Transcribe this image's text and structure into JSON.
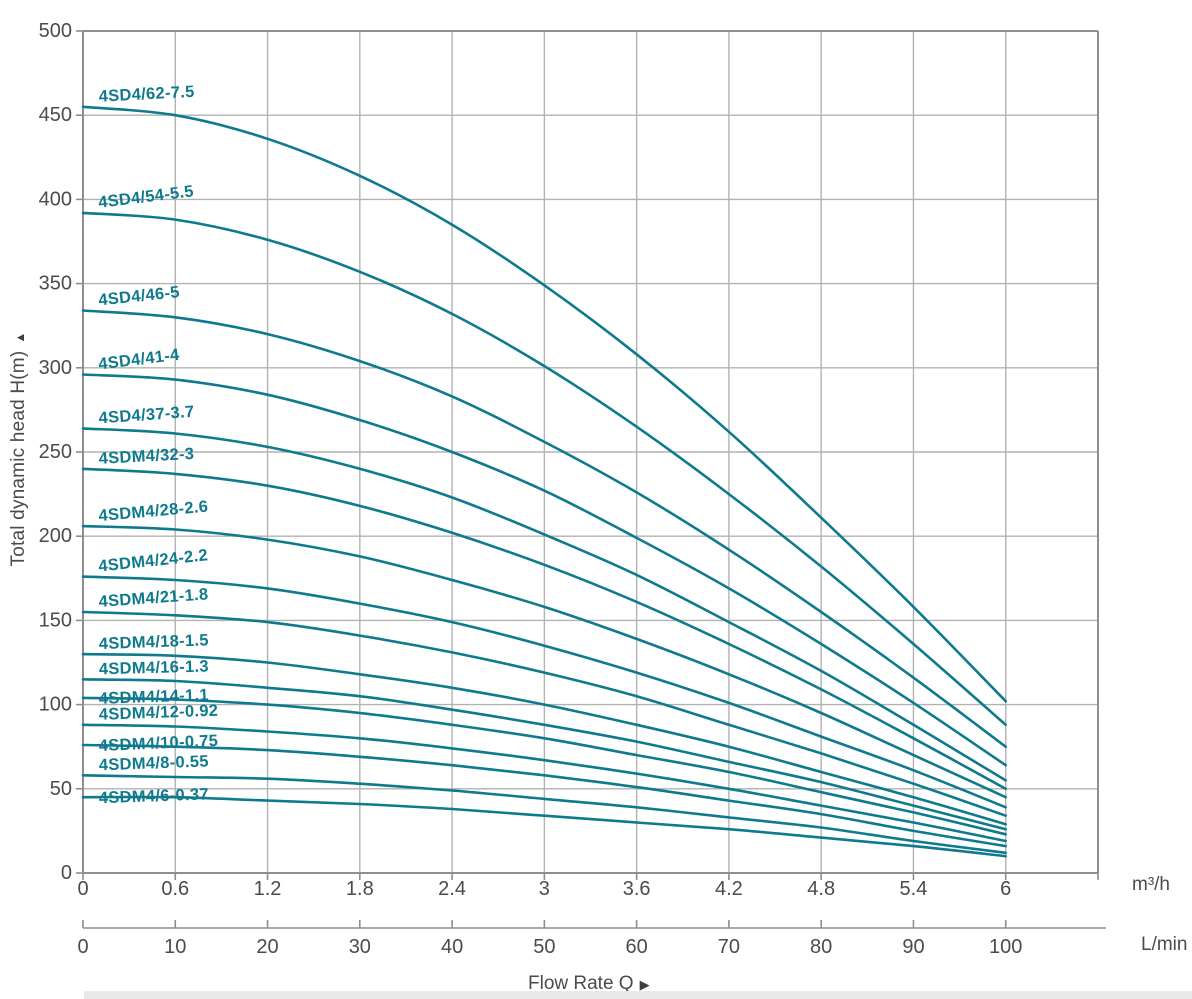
{
  "icons": {
    "up_arrow": "▲",
    "right_arrow": "▶"
  },
  "colors": {
    "curve": "#0e7a8d",
    "curve_label": "#0e7a8d",
    "grid": "#b2b2b2",
    "border": "#8e8e8e",
    "tick": "#8e8e8e",
    "text": "#4b4b4b",
    "strip": "#e9e9e9"
  },
  "chart_data": {
    "type": "line",
    "title": "",
    "xlabel": "Flow Rate Q",
    "ylabel": "Total dynamic head H(m)",
    "x_unit_primary": "m³/h",
    "x_unit_secondary": "L/min",
    "x_m3h": [
      0,
      0.6,
      1.2,
      1.8,
      2.4,
      3,
      3.6,
      4.2,
      4.8,
      5.4,
      6
    ],
    "x_ticks_m3h": [
      "0",
      "0.6",
      "1.2",
      "1.8",
      "2.4",
      "3",
      "3.6",
      "4.2",
      "4.8",
      "5.4",
      "6"
    ],
    "x_ticks_lmin": [
      "0",
      "10",
      "20",
      "30",
      "40",
      "50",
      "60",
      "70",
      "80",
      "90",
      "100"
    ],
    "x_range_m3h": [
      0,
      6.6
    ],
    "y_ticks": [
      0,
      50,
      100,
      150,
      200,
      250,
      300,
      350,
      400,
      450,
      500
    ],
    "y_range": [
      0,
      500
    ],
    "grid": true,
    "legend_position": "labels-on-curves",
    "series": [
      {
        "name": "4SD4/62-7.5",
        "heads_m": [
          455,
          450,
          436,
          414,
          385,
          349,
          308,
          262,
          211,
          158,
          102
        ],
        "label_rot": -3,
        "label_on_line": false
      },
      {
        "name": "4SD4/54-5.5",
        "heads_m": [
          392,
          388,
          376,
          357,
          332,
          301,
          265,
          225,
          182,
          136,
          88
        ],
        "label_rot": -7,
        "label_on_line": false
      },
      {
        "name": "4SD4/46-5",
        "heads_m": [
          334,
          330,
          320,
          304,
          283,
          256,
          226,
          192,
          155,
          116,
          75
        ],
        "label_rot": -6,
        "label_on_line": false
      },
      {
        "name": "4SD4/41-4",
        "heads_m": [
          296,
          293,
          284,
          269,
          250,
          227,
          199,
          169,
          136,
          101,
          64
        ],
        "label_rot": -7,
        "label_on_line": false
      },
      {
        "name": "4SD4/37-3.7",
        "heads_m": [
          264,
          261,
          253,
          240,
          223,
          201,
          177,
          149,
          120,
          88,
          55
        ],
        "label_rot": -4,
        "label_on_line": false
      },
      {
        "name": "4SDM4/32-3",
        "heads_m": [
          240,
          237,
          230,
          218,
          202,
          183,
          161,
          136,
          109,
          80,
          50
        ],
        "label_rot": -3,
        "label_on_line": false
      },
      {
        "name": "4SDM4/28-2.6",
        "heads_m": [
          206,
          204,
          198,
          188,
          174,
          158,
          139,
          118,
          95,
          70,
          45
        ],
        "label_rot": -5,
        "label_on_line": false
      },
      {
        "name": "4SDM4/24-2.2",
        "heads_m": [
          176,
          174,
          169,
          160,
          149,
          135,
          119,
          101,
          81,
          61,
          39
        ],
        "label_rot": -6,
        "label_on_line": false
      },
      {
        "name": "4SDM4/21-1.8",
        "heads_m": [
          155,
          153,
          149,
          141,
          131,
          119,
          105,
          88,
          71,
          53,
          34
        ],
        "label_rot": -4,
        "label_on_line": false
      },
      {
        "name": "4SDM4/18-1.5",
        "heads_m": [
          130,
          129,
          125,
          118,
          110,
          100,
          88,
          75,
          60,
          45,
          29
        ],
        "label_rot": -2,
        "label_on_line": false
      },
      {
        "name": "4SDM4/16-1.3",
        "heads_m": [
          115,
          114,
          110,
          105,
          97,
          88,
          78,
          66,
          54,
          40,
          26
        ],
        "label_rot": -1.5,
        "label_on_line": false
      },
      {
        "name": "4SDM4/14-1.1",
        "heads_m": [
          104,
          103,
          100,
          95,
          88,
          80,
          70,
          60,
          48,
          36,
          23
        ],
        "label_rot": -2,
        "label_on_line": true
      },
      {
        "name": "4SDM4/12-0.92",
        "heads_m": [
          88,
          87,
          84,
          80,
          74,
          67,
          59,
          50,
          40,
          30,
          19
        ],
        "label_rot": -2,
        "label_on_line": false
      },
      {
        "name": "4SDM4/10-0.75",
        "heads_m": [
          76,
          75,
          73,
          69,
          64,
          58,
          51,
          43,
          35,
          25,
          16
        ],
        "label_rot": -2.5,
        "label_on_line": true
      },
      {
        "name": "4SDM4/8-0.55",
        "heads_m": [
          58,
          57,
          56,
          53,
          49,
          44,
          39,
          33,
          27,
          19,
          12
        ],
        "label_rot": -2,
        "label_on_line": false
      },
      {
        "name": "4SDM4/6-0.37",
        "heads_m": [
          45,
          45,
          43,
          41,
          38,
          34,
          30,
          26,
          21,
          16,
          10
        ],
        "label_rot": -2,
        "label_on_line": true
      }
    ]
  }
}
